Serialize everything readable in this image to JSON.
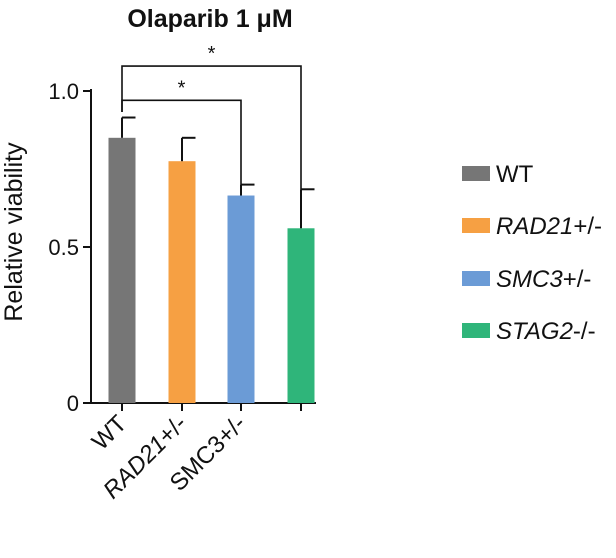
{
  "chart_data": {
    "type": "bar",
    "title": "Olaparib 1 μM",
    "ylabel": "Relative viability",
    "xlabel": "",
    "ylim": [
      0,
      1.0
    ],
    "yticks": [
      {
        "value": 0,
        "label": "0"
      },
      {
        "value": 0.5,
        "label": "0.5"
      },
      {
        "value": 1.0,
        "label": "1.0"
      }
    ],
    "categories": [
      {
        "italic": "",
        "plain": "WT"
      },
      {
        "italic": "RAD21",
        "plain": "+/-"
      },
      {
        "italic": "",
        "plain": "SMC3+/-"
      },
      {
        "italic": "",
        "plain": ""
      }
    ],
    "values": [
      0.85,
      0.775,
      0.665,
      0.56
    ],
    "errors": [
      0.065,
      0.075,
      0.035,
      0.125
    ],
    "colors": [
      "#767676",
      "#f6a043",
      "#6b9bd6",
      "#2fb57a"
    ],
    "legend": [
      {
        "italic": "",
        "plain": "WT",
        "color": "#767676"
      },
      {
        "italic": "RAD21",
        "plain": "+/-",
        "color": "#f6a043"
      },
      {
        "italic": "SMC3",
        "plain": "+/-",
        "color": "#6b9bd6"
      },
      {
        "italic": "STAG2",
        "plain": "-/-",
        "color": "#2fb57a"
      }
    ],
    "legend_position": "right",
    "significance": [
      {
        "from": 0,
        "to": 2,
        "label": "*"
      },
      {
        "from": 0,
        "to": 3,
        "label": "*"
      }
    ],
    "grid": false
  }
}
